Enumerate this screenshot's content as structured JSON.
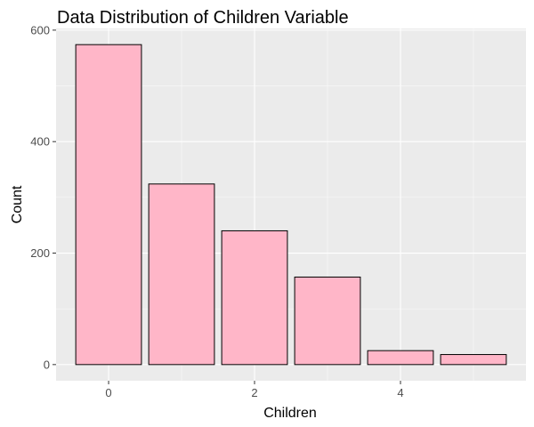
{
  "chart_data": {
    "type": "bar",
    "title": "Data Distribution of Children Variable",
    "xlabel": "Children",
    "ylabel": "Count",
    "categories": [
      0,
      1,
      2,
      3,
      4,
      5
    ],
    "values": [
      574,
      324,
      240,
      157,
      25,
      18
    ],
    "xlim": [
      -0.72,
      5.72
    ],
    "ylim": [
      -29,
      603
    ],
    "x_ticks": [
      0,
      2,
      4
    ],
    "y_ticks": [
      0,
      200,
      400,
      600
    ],
    "grid": true,
    "bar_fill": "#ffb6c8",
    "bar_outline": "#000000",
    "panel_color": "#ebebeb"
  }
}
